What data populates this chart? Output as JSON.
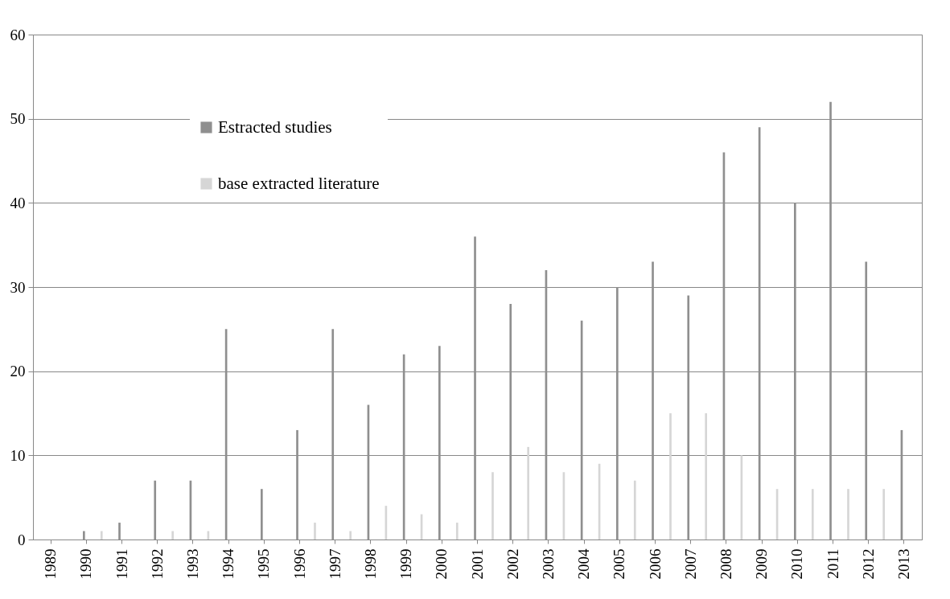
{
  "chart_data": {
    "type": "bar",
    "categories": [
      "1989",
      "1990",
      "1991",
      "1992",
      "1993",
      "1994",
      "1995",
      "1996",
      "1997",
      "1998",
      "1999",
      "2000",
      "2001",
      "2002",
      "2003",
      "2004",
      "2005",
      "2006",
      "2007",
      "2008",
      "2009",
      "2010",
      "2011",
      "2012",
      "2013"
    ],
    "series": [
      {
        "name": "Estracted studies",
        "color": "#8f8f8f",
        "values": [
          0,
          1,
          2,
          7,
          7,
          25,
          6,
          13,
          25,
          16,
          22,
          23,
          36,
          28,
          32,
          26,
          30,
          33,
          29,
          46,
          49,
          40,
          52,
          33,
          13
        ]
      },
      {
        "name": "base extracted literature",
        "color": "#d6d6d6",
        "values": [
          0,
          1,
          0,
          1,
          1,
          0,
          0,
          2,
          1,
          4,
          3,
          2,
          8,
          11,
          8,
          9,
          7,
          15,
          15,
          10,
          6,
          6,
          6,
          6,
          0
        ]
      }
    ],
    "ylim": [
      0,
      60
    ],
    "yticks": [
      0,
      10,
      20,
      30,
      40,
      50,
      60
    ],
    "grid": "y",
    "legend": "top left"
  }
}
